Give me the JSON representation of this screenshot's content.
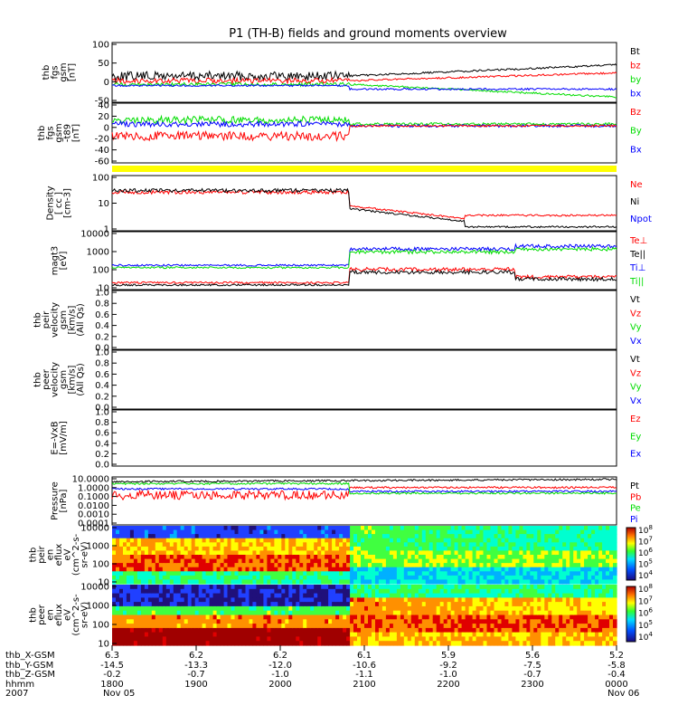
{
  "title": "P1 (TH-B) fields and ground moments overview",
  "colors": {
    "black": "#000000",
    "red": "#ff0000",
    "green": "#00dd00",
    "blue": "#0000ff",
    "yellow": "#ffff00"
  },
  "chart_data": [
    {
      "type": "line",
      "panel": "fgs",
      "ylabel": [
        "thb",
        "fgs",
        "gsm",
        "[nT]"
      ],
      "yticks": [
        "100",
        "50",
        "0",
        "-50"
      ],
      "legend": [
        {
          "name": "Bt",
          "color": "black"
        },
        {
          "name": "bz",
          "color": "red"
        },
        {
          "name": "by",
          "color": "green"
        },
        {
          "name": "bx",
          "color": "blue"
        }
      ]
    },
    {
      "type": "line",
      "panel": "fgs-t89",
      "ylabel": [
        "thb",
        "fgs",
        "gsm",
        "-t89",
        "[nT]"
      ],
      "yticks": [
        "40",
        "20",
        "0",
        "-20",
        "-40",
        "-60"
      ],
      "legend": [
        {
          "name": "Bz",
          "color": "red"
        },
        {
          "name": "By",
          "color": "green"
        },
        {
          "name": "Bx",
          "color": "blue"
        }
      ]
    },
    {
      "type": "line",
      "panel": "density",
      "ylabel": [
        "Density",
        "[ cc ]",
        "[cm-3]"
      ],
      "yticks": [
        "100",
        "10",
        "1"
      ],
      "legend": [
        {
          "name": "Ne",
          "color": "red"
        },
        {
          "name": "Ni",
          "color": "black"
        },
        {
          "name": "Npot",
          "color": "blue"
        }
      ]
    },
    {
      "type": "line",
      "panel": "temperature",
      "ylabel": [
        "magt3",
        "[eV]"
      ],
      "yticks": [
        "10000",
        "1000",
        "100",
        "10"
      ],
      "legend": [
        {
          "name": "Te⊥",
          "color": "red"
        },
        {
          "name": "Te||",
          "color": "black"
        },
        {
          "name": "Ti⊥",
          "color": "blue"
        },
        {
          "name": "Ti||",
          "color": "green"
        }
      ]
    },
    {
      "type": "line",
      "panel": "peir-velocity",
      "ylabel": [
        "thb",
        "peir",
        "velocity",
        "gsm",
        "[km/s]",
        "(All Qs)"
      ],
      "yticks": [
        "1.0",
        "0.8",
        "0.6",
        "0.4",
        "0.2",
        "0.0"
      ],
      "legend": [
        {
          "name": "Vt",
          "color": "black"
        },
        {
          "name": "Vz",
          "color": "red"
        },
        {
          "name": "Vy",
          "color": "green"
        },
        {
          "name": "Vx",
          "color": "blue"
        }
      ]
    },
    {
      "type": "line",
      "panel": "peer-velocity",
      "ylabel": [
        "thb",
        "peer",
        "velocity",
        "gsm",
        "[km/s]",
        "(All Qs)"
      ],
      "yticks": [
        "1.0",
        "0.8",
        "0.6",
        "0.4",
        "0.2",
        "0.0"
      ],
      "legend": [
        {
          "name": "Vt",
          "color": "black"
        },
        {
          "name": "Vz",
          "color": "red"
        },
        {
          "name": "Vy",
          "color": "green"
        },
        {
          "name": "Vx",
          "color": "blue"
        }
      ]
    },
    {
      "type": "line",
      "panel": "exb",
      "ylabel": [
        "E=-VxB",
        "[mV/m]"
      ],
      "yticks": [
        "1.0",
        "0.8",
        "0.6",
        "0.4",
        "0.2",
        "0.0"
      ],
      "legend": [
        {
          "name": "Ez",
          "color": "red"
        },
        {
          "name": "Ey",
          "color": "green"
        },
        {
          "name": "Ex",
          "color": "blue"
        }
      ]
    },
    {
      "type": "line",
      "panel": "pressure",
      "ylabel": [
        "Pressure",
        "[nPa]"
      ],
      "yticks": [
        "10.0000",
        "1.0000",
        "0.1000",
        "0.0100",
        "0.0010",
        "0.0001"
      ],
      "legend": [
        {
          "name": "Pt",
          "color": "black"
        },
        {
          "name": "Pb",
          "color": "red"
        },
        {
          "name": "Pe",
          "color": "green"
        },
        {
          "name": "Pi",
          "color": "blue"
        }
      ]
    },
    {
      "type": "heatmap",
      "panel": "peir-eflux",
      "ylabel": [
        "thb",
        "peir",
        "en",
        "eflux",
        "eV",
        "(cm^2-s-",
        "sr-eV)"
      ],
      "yticks": [
        "10000",
        "1000",
        "100",
        "10"
      ],
      "colorbar": [
        "10^8",
        "10^7",
        "10^6",
        "10^5",
        "10^4"
      ]
    },
    {
      "type": "heatmap",
      "panel": "peer-eflux",
      "ylabel": [
        "thb",
        "peer",
        "en",
        "eflux",
        "eV",
        "(cm^2-s-",
        "sr-eV)"
      ],
      "yticks": [
        "10000",
        "1000",
        "100",
        "10"
      ],
      "colorbar": [
        "10^8",
        "10^7",
        "10^6",
        "10^5",
        "10^4"
      ]
    }
  ],
  "x_axis": {
    "row_labels": [
      "thb_X-GSM",
      "thb_Y-GSM",
      "thb_Z-GSM",
      "hhmm",
      "2007"
    ],
    "ticks": [
      {
        "vals": [
          "6.3",
          "-14.5",
          "-0.2",
          "1800",
          "Nov 05"
        ]
      },
      {
        "vals": [
          "6.2",
          "-13.3",
          "-0.7",
          "1900",
          ""
        ]
      },
      {
        "vals": [
          "6.2",
          "-12.0",
          "-1.0",
          "2000",
          ""
        ]
      },
      {
        "vals": [
          "6.1",
          "-10.6",
          "-1.1",
          "2100",
          ""
        ]
      },
      {
        "vals": [
          "5.9",
          "-9.2",
          "-1.0",
          "2200",
          ""
        ]
      },
      {
        "vals": [
          "5.6",
          "-7.5",
          "-0.7",
          "2300",
          ""
        ]
      },
      {
        "vals": [
          "5.2",
          "-5.8",
          "-0.4",
          "0000",
          "Nov 06"
        ]
      }
    ]
  }
}
